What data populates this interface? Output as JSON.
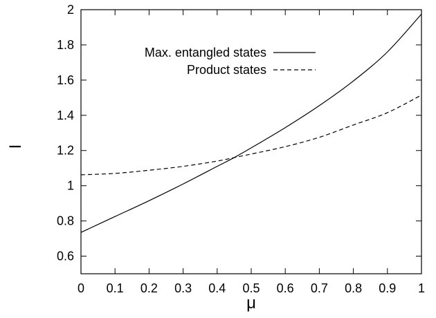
{
  "chart_data": {
    "type": "line",
    "title": "",
    "xlabel": "μ",
    "ylabel": "I",
    "xlim": [
      0,
      1
    ],
    "ylim": [
      0.5,
      2.0
    ],
    "xticks": [
      "0",
      "0.1",
      "0.2",
      "0.3",
      "0.4",
      "0.5",
      "0.6",
      "0.7",
      "0.8",
      "0.9",
      "1"
    ],
    "yticks": [
      "0.6",
      "0.8",
      "1",
      "1.2",
      "1.4",
      "1.6",
      "1.8",
      "2"
    ],
    "legend_position": "top-left",
    "grid": false,
    "series": [
      {
        "name": "Max. entangled states",
        "style": "solid",
        "color": "#000000",
        "x": [
          0,
          0.1,
          0.2,
          0.3,
          0.4,
          0.45,
          0.5,
          0.6,
          0.7,
          0.8,
          0.9,
          1.0
        ],
        "y": [
          0.735,
          0.825,
          0.915,
          1.01,
          1.11,
          1.16,
          1.215,
          1.33,
          1.455,
          1.595,
          1.76,
          1.975
        ]
      },
      {
        "name": "Product states",
        "style": "dashed",
        "color": "#000000",
        "x": [
          0,
          0.1,
          0.2,
          0.3,
          0.4,
          0.45,
          0.5,
          0.6,
          0.7,
          0.8,
          0.9,
          1.0
        ],
        "y": [
          1.062,
          1.07,
          1.088,
          1.11,
          1.14,
          1.16,
          1.18,
          1.222,
          1.275,
          1.345,
          1.415,
          1.515
        ]
      }
    ]
  }
}
